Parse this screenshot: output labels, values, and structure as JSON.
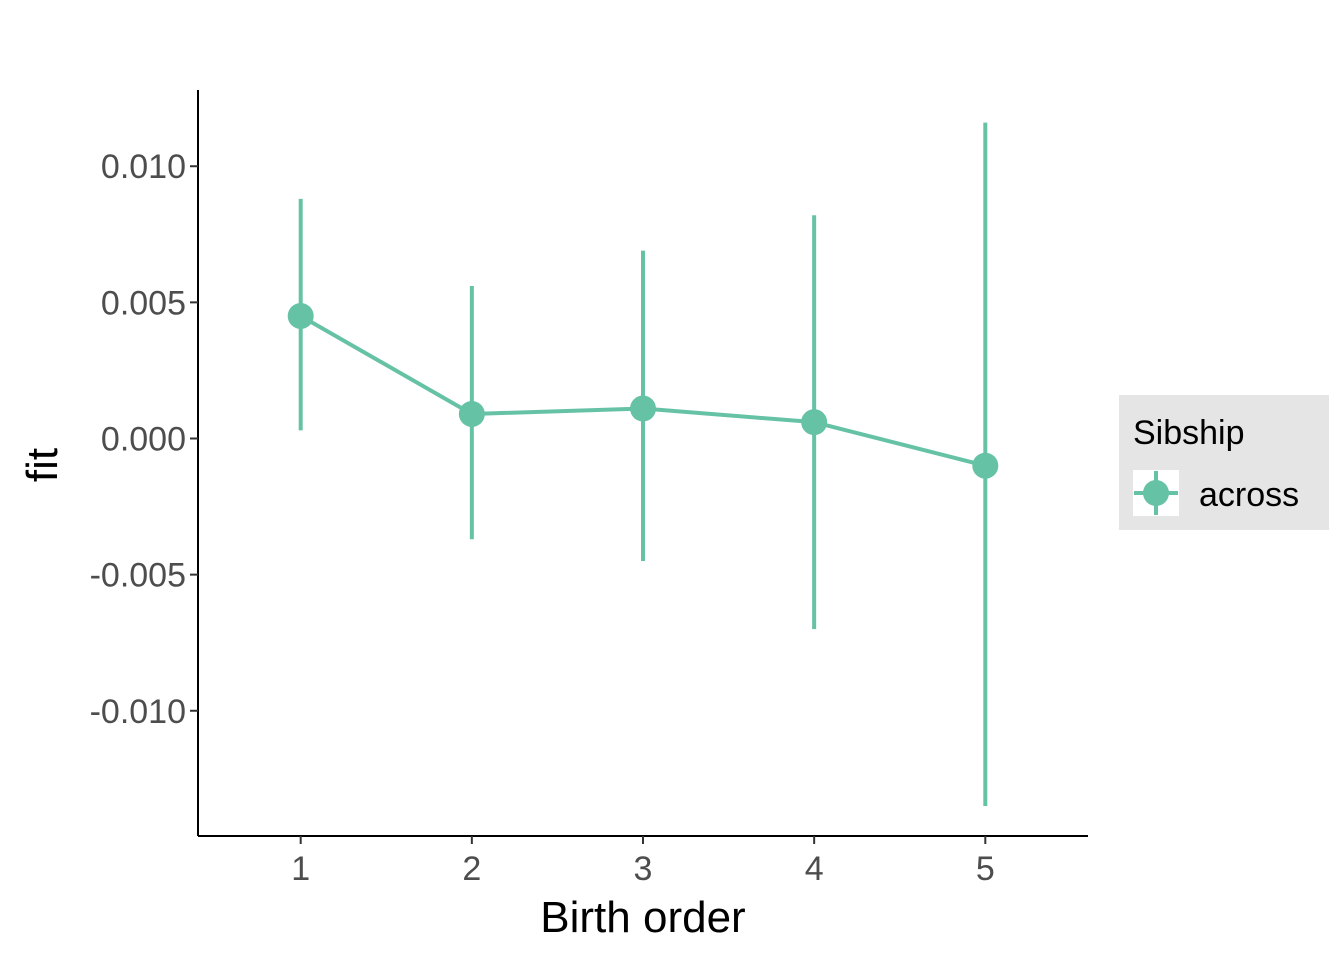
{
  "chart_data": {
    "type": "line",
    "xlabel": "Birth order",
    "ylabel": "fit",
    "x": [
      1,
      2,
      3,
      4,
      5
    ],
    "xlim": [
      0.4,
      5.6
    ],
    "ylim": [
      -0.0146,
      0.0128
    ],
    "y_ticks": [
      0.01,
      0.005,
      0.0,
      -0.005,
      -0.01
    ],
    "y_tick_labels": [
      "0.010",
      "0.005",
      "0.000",
      "-0.005",
      "-0.010"
    ],
    "x_tick_labels": [
      "1",
      "2",
      "3",
      "4",
      "5"
    ],
    "series": [
      {
        "name": "across",
        "color": "#66c2a5",
        "values": [
          0.0045,
          0.0009,
          0.0011,
          0.0006,
          -0.001
        ],
        "lower": [
          0.0003,
          -0.0037,
          -0.0045,
          -0.007,
          -0.0135
        ],
        "upper": [
          0.0088,
          0.0056,
          0.0069,
          0.0082,
          0.0116
        ]
      }
    ],
    "legend": {
      "title": "Sibship",
      "position": "right",
      "background": "#e5e5e5"
    },
    "grid": false
  }
}
